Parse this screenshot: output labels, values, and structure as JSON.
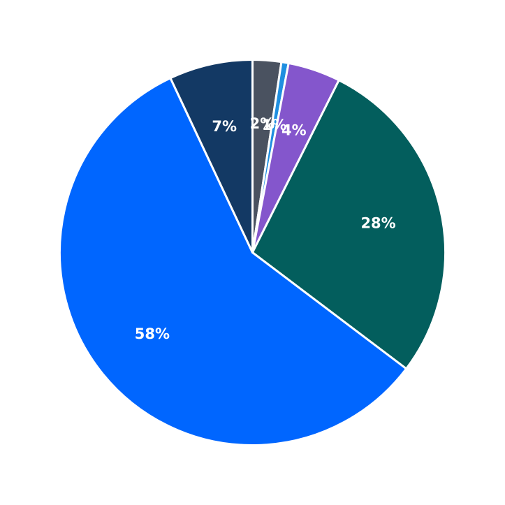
{
  "chart_data": {
    "type": "pie",
    "title": "",
    "start": "top",
    "direction": "clockwise",
    "label_color": "#ffffff",
    "slices": [
      {
        "label": "2%",
        "value": 2.4,
        "color": "#4a5260"
      },
      {
        "label": "1%",
        "value": 0.6,
        "color": "#1f8fe0"
      },
      {
        "label": "4%",
        "value": 4.4,
        "color": "#8456cc"
      },
      {
        "label": "28%",
        "value": 27.9,
        "color": "#035e5d"
      },
      {
        "label": "58%",
        "value": 57.7,
        "color": "#0066ff"
      },
      {
        "label": "7%",
        "value": 7.0,
        "color": "#133964"
      }
    ]
  }
}
